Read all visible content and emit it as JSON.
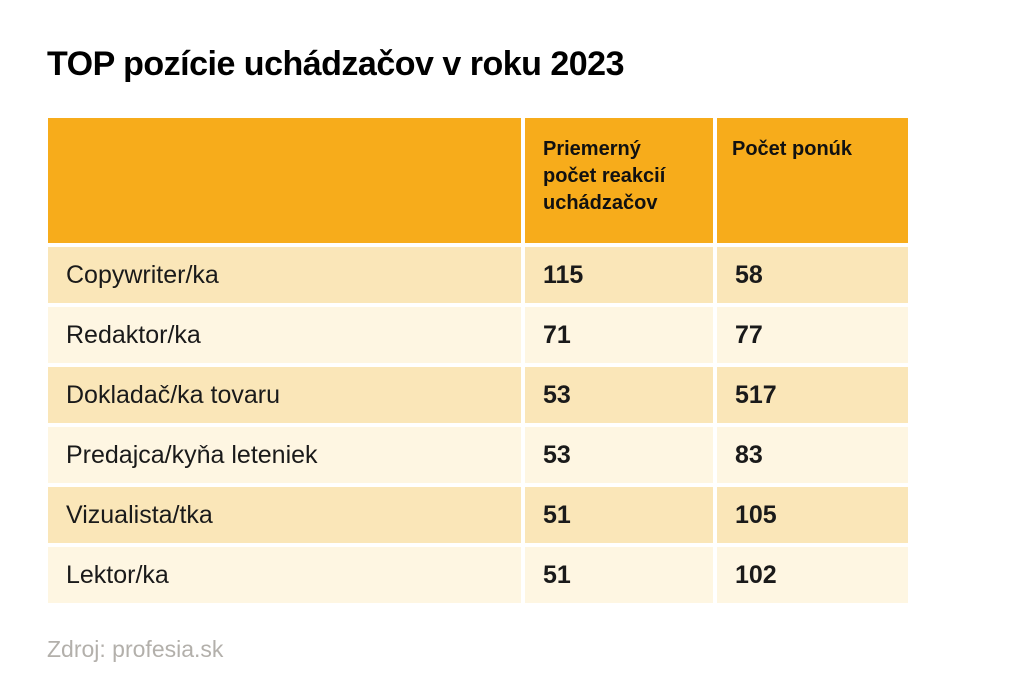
{
  "page": {
    "title": "TOP pozície uchádzačov v roku 2023",
    "source": "Zdroj: profesia.sk"
  },
  "table": {
    "headers": [
      "",
      "Priemerný počet reakcií uchádzačov",
      "Počet ponúk"
    ],
    "rows": [
      {
        "position": "Copywriter/ka",
        "avg_reactions": "115",
        "offers": "58"
      },
      {
        "position": "Redaktor/ka",
        "avg_reactions": "71",
        "offers": "77"
      },
      {
        "position": "Dokladač/ka tovaru",
        "avg_reactions": "53",
        "offers": "517"
      },
      {
        "position": "Predajca/kyňa leteniek",
        "avg_reactions": "53",
        "offers": "83"
      },
      {
        "position": "Vizualista/tka",
        "avg_reactions": "51",
        "offers": "105"
      },
      {
        "position": "Lektor/ka",
        "avg_reactions": "51",
        "offers": "102"
      }
    ]
  },
  "colors": {
    "header_background": "#F7AC1B",
    "row_dark": "#FAE6B8",
    "row_light": "#FEF6E2",
    "title_text": "#000000",
    "table_text": "#1A1A1A",
    "source_text": "#B3B0AB",
    "page_background": "#FFFFFF"
  },
  "chart_data": {
    "type": "table",
    "title": "TOP pozície uchádzačov v roku 2023",
    "columns": [
      "",
      "Priemerný počet reakcií uchádzačov",
      "Počet ponúk"
    ],
    "rows": [
      [
        "Copywriter/ka",
        115,
        58
      ],
      [
        "Redaktor/ka",
        71,
        77
      ],
      [
        "Dokladač/ka tovaru",
        53,
        517
      ],
      [
        "Predajca/kyňa leteniek",
        53,
        83
      ],
      [
        "Vizualista/tka",
        51,
        105
      ],
      [
        "Lektor/ka",
        51,
        102
      ]
    ],
    "source": "Zdroj: profesia.sk"
  }
}
